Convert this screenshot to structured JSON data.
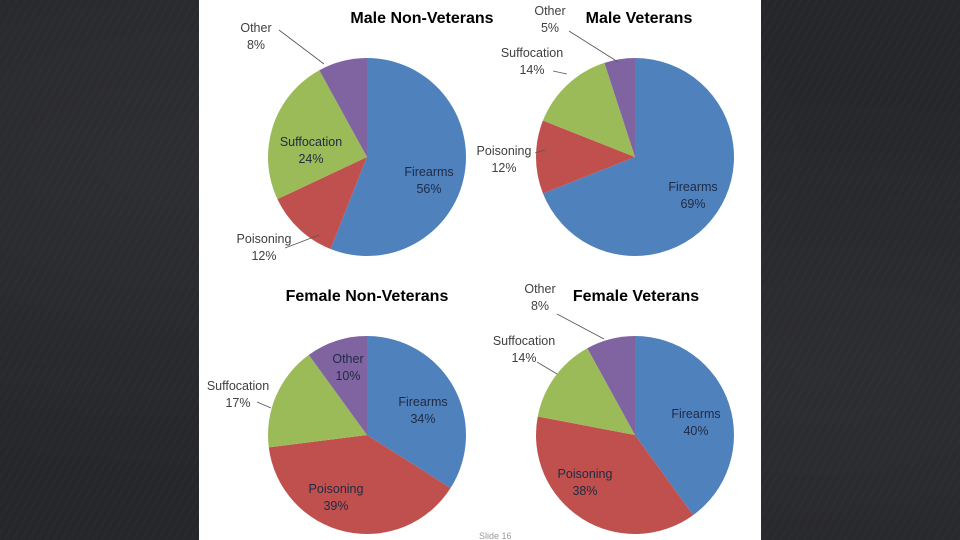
{
  "slide_footer": "Slide 16",
  "colors": {
    "Firearms": "#4f81bd",
    "Poisoning": "#c0504d",
    "Suffocation": "#9bbb59",
    "Other": "#8064a2"
  },
  "chart_data": [
    {
      "type": "pie",
      "title": "Male Non-Veterans",
      "slices": [
        {
          "label": "Firearms",
          "value": 56,
          "text": "56%"
        },
        {
          "label": "Poisoning",
          "value": 12,
          "text": "12%"
        },
        {
          "label": "Suffocation",
          "value": 24,
          "text": "24%"
        },
        {
          "label": "Other",
          "value": 8,
          "text": "8%"
        }
      ]
    },
    {
      "type": "pie",
      "title": "Male Veterans",
      "slices": [
        {
          "label": "Firearms",
          "value": 69,
          "text": "69%"
        },
        {
          "label": "Poisoning",
          "value": 12,
          "text": "12%"
        },
        {
          "label": "Suffocation",
          "value": 14,
          "text": "14%"
        },
        {
          "label": "Other",
          "value": 5,
          "text": "5%"
        }
      ]
    },
    {
      "type": "pie",
      "title": "Female Non-Veterans",
      "slices": [
        {
          "label": "Firearms",
          "value": 34,
          "text": "34%"
        },
        {
          "label": "Poisoning",
          "value": 39,
          "text": "39%"
        },
        {
          "label": "Suffocation",
          "value": 17,
          "text": "17%"
        },
        {
          "label": "Other",
          "value": 10,
          "text": "10%"
        }
      ]
    },
    {
      "type": "pie",
      "title": "Female Veterans",
      "slices": [
        {
          "label": "Firearms",
          "value": 40,
          "text": "40%"
        },
        {
          "label": "Poisoning",
          "value": 38,
          "text": "38%"
        },
        {
          "label": "Suffocation",
          "value": 14,
          "text": "14%"
        },
        {
          "label": "Other",
          "value": 8,
          "text": "8%"
        }
      ]
    }
  ]
}
